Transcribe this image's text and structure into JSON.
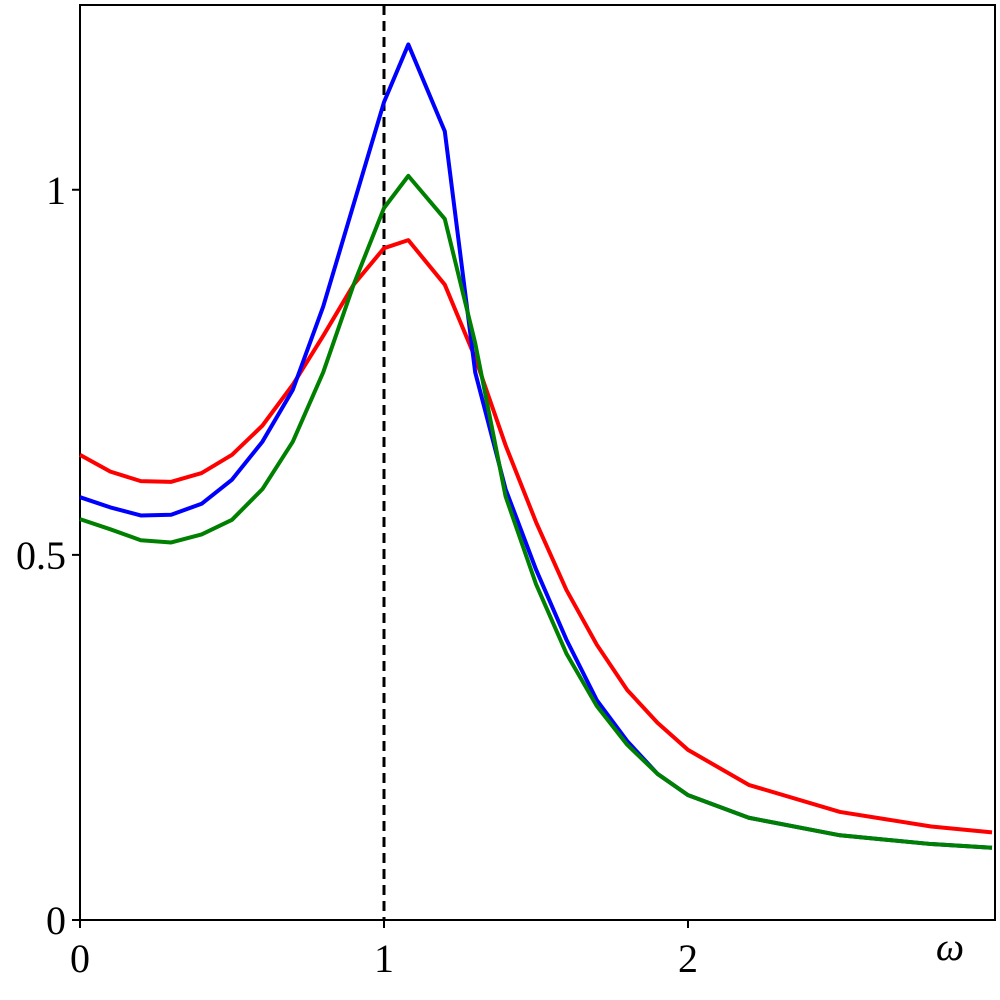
{
  "chart_data": {
    "type": "line",
    "xlabel": "ω",
    "x": [
      0,
      0.1,
      0.2,
      0.3,
      0.4,
      0.5,
      0.6,
      0.7,
      0.8,
      0.9,
      1.0,
      1.08,
      1.2,
      1.3,
      1.4,
      1.5,
      1.6,
      1.7,
      1.8,
      1.9,
      2.0,
      2.2,
      2.5,
      2.8,
      3.0
    ],
    "series": [
      {
        "color": "#ff0000",
        "values": [
          0.637,
          0.614,
          0.601,
          0.6,
          0.612,
          0.637,
          0.677,
          0.733,
          0.8,
          0.87,
          0.92,
          0.931,
          0.87,
          0.77,
          0.65,
          0.545,
          0.452,
          0.377,
          0.315,
          0.27,
          0.233,
          0.185,
          0.148,
          0.128,
          0.12
        ]
      },
      {
        "color": "#0000ff",
        "values": [
          0.579,
          0.565,
          0.554,
          0.555,
          0.57,
          0.603,
          0.655,
          0.726,
          0.84,
          0.98,
          1.12,
          1.199,
          1.08,
          0.75,
          0.59,
          0.48,
          0.384,
          0.301,
          0.245,
          0.2,
          0.171,
          0.14,
          0.116,
          0.104,
          0.099
        ]
      },
      {
        "color": "#008000",
        "values": [
          0.549,
          0.535,
          0.52,
          0.517,
          0.528,
          0.548,
          0.59,
          0.655,
          0.75,
          0.87,
          0.975,
          1.019,
          0.96,
          0.79,
          0.58,
          0.46,
          0.365,
          0.293,
          0.24,
          0.2,
          0.171,
          0.14,
          0.116,
          0.104,
          0.099
        ]
      }
    ],
    "vline": 1,
    "xlim": [
      0,
      3
    ],
    "ylim": [
      0,
      1.253
    ],
    "xticks": [
      0,
      1,
      2
    ],
    "yticks": [
      0,
      0.5,
      1
    ],
    "grid": false
  }
}
